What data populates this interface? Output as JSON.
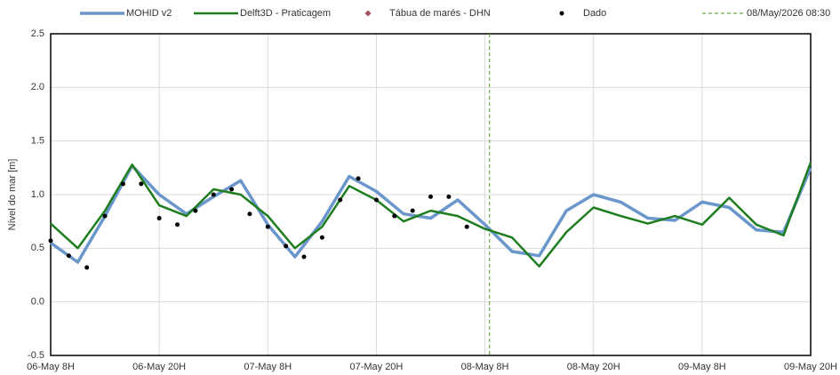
{
  "chart_data": {
    "type": "line",
    "y_label": "Nível do mar [m]",
    "xlim": [
      "2026-05-06T08:00",
      "2026-05-09T20:00"
    ],
    "xticks": [
      {
        "value": "2026-05-06T08:00",
        "label": "06-May 8H"
      },
      {
        "value": "2026-05-06T20:00",
        "label": "06-May 20H"
      },
      {
        "value": "2026-05-07T08:00",
        "label": "07-May 8H"
      },
      {
        "value": "2026-05-07T20:00",
        "label": "07-May 20H"
      },
      {
        "value": "2026-05-08T08:00",
        "label": "08-May 8H"
      },
      {
        "value": "2026-05-08T20:00",
        "label": "08-May 20H"
      },
      {
        "value": "2026-05-09T08:00",
        "label": "09-May 8H"
      },
      {
        "value": "2026-05-09T20:00",
        "label": "09-May 20H"
      }
    ],
    "ylim": [
      -0.5,
      2.5
    ],
    "yticks": [
      -0.5,
      {
        "value": 0,
        "label": "0.0"
      },
      0.5,
      {
        "value": 1,
        "label": "1.0"
      },
      1.5,
      {
        "value": 2,
        "label": "2.0"
      },
      2.5
    ],
    "grid": true,
    "legend": "top",
    "series": [
      {
        "name": "MOHID v2",
        "color": "#6b96cc",
        "style": "line",
        "x": [
          "2026-05-06T08:00",
          "2026-05-06T11:00",
          "2026-05-06T14:00",
          "2026-05-06T17:00",
          "2026-05-06T20:00",
          "2026-05-06T23:00",
          "2026-05-07T02:00",
          "2026-05-07T05:00",
          "2026-05-07T08:00",
          "2026-05-07T11:00",
          "2026-05-07T14:00",
          "2026-05-07T17:00",
          "2026-05-07T20:00",
          "2026-05-07T23:00",
          "2026-05-08T02:00",
          "2026-05-08T05:00",
          "2026-05-08T08:00",
          "2026-05-08T11:00",
          "2026-05-08T14:00",
          "2026-05-08T17:00",
          "2026-05-08T20:00",
          "2026-05-08T23:00",
          "2026-05-09T02:00",
          "2026-05-09T05:00",
          "2026-05-09T08:00",
          "2026-05-09T11:00",
          "2026-05-09T14:00",
          "2026-05-09T17:00",
          "2026-05-09T20:00"
        ],
        "values": [
          0.55,
          0.37,
          0.8,
          1.27,
          1.0,
          0.82,
          0.98,
          1.13,
          0.72,
          0.42,
          0.75,
          1.17,
          1.03,
          0.82,
          0.78,
          0.95,
          0.72,
          0.47,
          0.43,
          0.85,
          1.0,
          0.93,
          0.78,
          0.76,
          0.93,
          0.88,
          0.67,
          0.65,
          1.25
        ]
      },
      {
        "name": "Delft3D - Praticagem",
        "color": "#1e7d1e",
        "style": "line",
        "x": [
          "2026-05-06T08:00",
          "2026-05-06T11:00",
          "2026-05-06T14:00",
          "2026-05-06T17:00",
          "2026-05-06T20:00",
          "2026-05-06T23:00",
          "2026-05-07T02:00",
          "2026-05-07T05:00",
          "2026-05-07T08:00",
          "2026-05-07T11:00",
          "2026-05-07T14:00",
          "2026-05-07T17:00",
          "2026-05-07T20:00",
          "2026-05-07T23:00",
          "2026-05-08T02:00",
          "2026-05-08T05:00",
          "2026-05-08T08:00",
          "2026-05-08T11:00",
          "2026-05-08T14:00",
          "2026-05-08T17:00",
          "2026-05-08T20:00",
          "2026-05-08T23:00",
          "2026-05-09T02:00",
          "2026-05-09T05:00",
          "2026-05-09T08:00",
          "2026-05-09T11:00",
          "2026-05-09T14:00",
          "2026-05-09T17:00",
          "2026-05-09T20:00"
        ],
        "values": [
          0.73,
          0.5,
          0.85,
          1.28,
          0.9,
          0.8,
          1.05,
          1.0,
          0.8,
          0.5,
          0.7,
          1.08,
          0.95,
          0.75,
          0.85,
          0.8,
          0.68,
          0.6,
          0.33,
          0.65,
          0.88,
          0.8,
          0.73,
          0.8,
          0.72,
          0.97,
          0.72,
          0.62,
          1.3
        ]
      },
      {
        "name": "Tábua de marés - DHN",
        "color": "#a0505f",
        "style": "diamond",
        "x": [],
        "values": []
      },
      {
        "name": "Dado",
        "color": "#000000",
        "style": "dot",
        "x": [
          "2026-05-06T08:00",
          "2026-05-06T10:00",
          "2026-05-06T12:00",
          "2026-05-06T14:00",
          "2026-05-06T16:00",
          "2026-05-06T18:00",
          "2026-05-06T20:00",
          "2026-05-06T22:00",
          "2026-05-07T00:00",
          "2026-05-07T02:00",
          "2026-05-07T04:00",
          "2026-05-07T06:00",
          "2026-05-07T08:00",
          "2026-05-07T10:00",
          "2026-05-07T12:00",
          "2026-05-07T14:00",
          "2026-05-07T16:00",
          "2026-05-07T18:00",
          "2026-05-07T20:00",
          "2026-05-07T22:00",
          "2026-05-08T00:00",
          "2026-05-08T02:00",
          "2026-05-08T04:00",
          "2026-05-08T06:00"
        ],
        "values": [
          0.57,
          0.43,
          0.32,
          0.8,
          1.1,
          1.1,
          0.78,
          0.72,
          0.85,
          1.0,
          1.05,
          0.82,
          0.7,
          0.52,
          0.42,
          0.6,
          0.95,
          1.15,
          0.95,
          0.8,
          0.85,
          0.98,
          0.98,
          0.7
        ]
      }
    ],
    "annotations": [
      {
        "label": "08/May/2026 08:30",
        "x": "2026-05-08T08:30",
        "color": "#6aaa4a",
        "style": "dashed"
      }
    ]
  }
}
